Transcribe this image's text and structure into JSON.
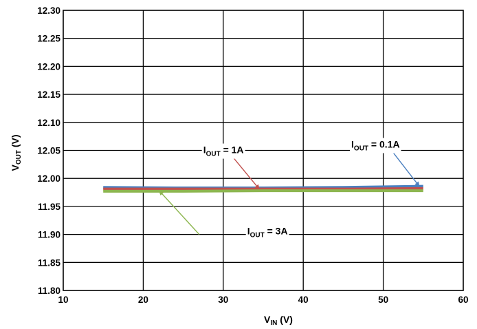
{
  "chart_data": {
    "type": "line",
    "xlabel": {
      "main": "V",
      "sub": "IN",
      "unit": " (V)"
    },
    "ylabel": {
      "main": "V",
      "sub": "OUT",
      "unit": " (V)"
    },
    "xlim": [
      10,
      60
    ],
    "ylim": [
      11.8,
      12.3
    ],
    "xticks": [
      "10",
      "20",
      "30",
      "40",
      "50",
      "60"
    ],
    "yticks": [
      "11.80",
      "11.85",
      "11.90",
      "11.95",
      "12.00",
      "12.05",
      "12.10",
      "12.15",
      "12.20",
      "12.25",
      "12.30"
    ],
    "grid": true,
    "series": [
      {
        "id": "s01",
        "color": "#4a7fbf",
        "x": [
          15,
          25,
          35,
          45,
          55
        ],
        "y": [
          11.984,
          11.983,
          11.983,
          11.984,
          11.986
        ]
      },
      {
        "id": "s1",
        "color": "#c0504d",
        "x": [
          15,
          25,
          35,
          45,
          55
        ],
        "y": [
          11.981,
          11.981,
          11.981,
          11.981,
          11.982
        ]
      },
      {
        "id": "s3",
        "color": "#8db650",
        "x": [
          15,
          25,
          35,
          45,
          55
        ],
        "y": [
          11.977,
          11.977,
          11.978,
          11.978,
          11.978
        ]
      }
    ],
    "annotations": [
      {
        "id": "a01",
        "pre": "I",
        "sub": "OUT",
        "post": " = 0.1A",
        "color": "#4a7fbf",
        "label_xy": [
          46,
          12.055
        ],
        "arrow_from": [
          51.3,
          12.045
        ],
        "arrow_to": [
          54.5,
          11.986
        ]
      },
      {
        "id": "a1",
        "pre": "I",
        "sub": "OUT",
        "post": " = 1A",
        "color": "#c0504d",
        "label_xy": [
          27.5,
          12.045
        ],
        "arrow_from": [
          30.8,
          12.045
        ],
        "arrow_to": [
          34.5,
          11.981
        ]
      },
      {
        "id": "a3",
        "pre": "I",
        "sub": "OUT",
        "post": " = 3A",
        "color": "#8db650",
        "label_xy": [
          33,
          11.9
        ],
        "arrow_from": [
          27,
          11.9
        ],
        "arrow_to": [
          22,
          11.978
        ]
      }
    ]
  }
}
